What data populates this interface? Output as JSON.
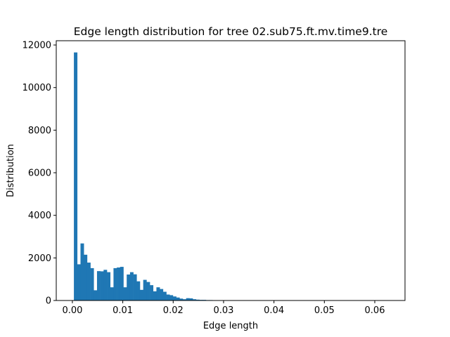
{
  "chart_data": {
    "type": "bar",
    "title": "Edge length distribution for tree 02.sub75.ft.mv.time9.tre",
    "xlabel": "Edge length",
    "ylabel": "Distribution",
    "xlim": [
      -0.0032,
      0.066
    ],
    "ylim": [
      0,
      12200
    ],
    "xticks": [
      0.0,
      0.01,
      0.02,
      0.03,
      0.04,
      0.05,
      0.06
    ],
    "xtick_labels": [
      "0.00",
      "0.01",
      "0.02",
      "0.03",
      "0.04",
      "0.05",
      "0.06"
    ],
    "yticks": [
      0,
      2000,
      4000,
      6000,
      8000,
      10000,
      12000
    ],
    "ytick_labels": [
      "0",
      "2000",
      "4000",
      "6000",
      "8000",
      "10000",
      "12000"
    ],
    "bin_start": 0.0003,
    "bin_width": 0.000655,
    "values": [
      11650,
      1700,
      2680,
      2150,
      1780,
      1520,
      480,
      1380,
      1370,
      1440,
      1330,
      620,
      1520,
      1550,
      1580,
      620,
      1220,
      1330,
      1230,
      900,
      500,
      970,
      870,
      720,
      430,
      620,
      540,
      410,
      280,
      250,
      190,
      140,
      90,
      60,
      110,
      100,
      60,
      40,
      30,
      30,
      20,
      20,
      15,
      10,
      8,
      6,
      4,
      3,
      2,
      2
    ],
    "color": "#1f77b4",
    "grid": false,
    "legend": "none"
  }
}
